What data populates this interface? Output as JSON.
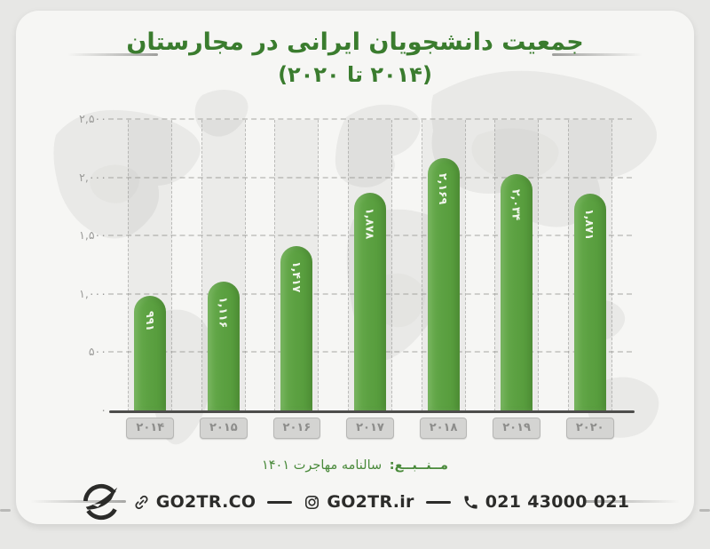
{
  "title": {
    "line1": "جمعیت دانشجویان ایرانی در مجارستان",
    "line2": "(۲۰۱۴ تا ۲۰۲۰)"
  },
  "chart_data": {
    "type": "bar",
    "title": "جمعیت دانشجویان ایرانی در مجارستان (۲۰۱۴ تا ۲۰۲۰)",
    "categories": [
      "۲۰۱۴",
      "۲۰۱۵",
      "۲۰۱۶",
      "۲۰۱۷",
      "۲۰۱۸",
      "۲۰۱۹",
      "۲۰۲۰"
    ],
    "categories_western": [
      2014,
      2015,
      2016,
      2017,
      2018,
      2019,
      2020
    ],
    "values": [
      991,
      1116,
      1417,
      1878,
      2169,
      2034,
      1871
    ],
    "value_labels": [
      "۹۹۱",
      "۱,۱۱۶",
      "۱,۴۱۷",
      "۱,۸۷۸",
      "۲,۱۶۹",
      "۲,۰۳۴",
      "۱,۸۷۱"
    ],
    "ylim": [
      0,
      2500
    ],
    "y_ticks": [
      {
        "value": 0,
        "label": "۰"
      },
      {
        "value": 500,
        "label": "۵۰۰"
      },
      {
        "value": 1000,
        "label": "۱,۰۰۰"
      },
      {
        "value": 1500,
        "label": "۱,۵۰۰"
      },
      {
        "value": 2000,
        "label": "۲,۰۰۰"
      },
      {
        "value": 2500,
        "label": "۲,۵۰۰"
      }
    ],
    "grid": {
      "horizontal": "dashed",
      "column_guides": "dashed"
    },
    "legend": false,
    "value_labels_rotated": true
  },
  "source": {
    "prefix": "مــنــبــع:",
    "text": "سالنامه مهاجرت ۱۴۰۱"
  },
  "footer": {
    "logo": "GO2TR",
    "website": {
      "icon": "link-icon",
      "label": "GO2TR.CO"
    },
    "instagram": {
      "icon": "instagram-icon",
      "label": "GO2TR.ir"
    },
    "phone": {
      "icon": "phone-icon",
      "label": "021 43000 021"
    }
  },
  "colors": {
    "bar_green": "#5ca142",
    "bar_green_light": "#69ad4e",
    "bar_green_dark": "#549a39",
    "title_green": "#3a7c2e",
    "source_green": "#4a8a3b",
    "value_label": "#f1f6ec",
    "badge_bg": "#d4d4d2",
    "footer_text": "#2c2c2a"
  }
}
